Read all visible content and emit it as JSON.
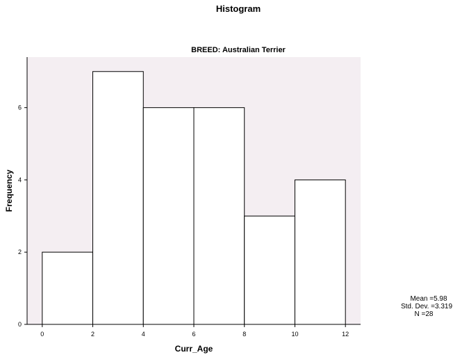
{
  "chart_data": {
    "type": "bar",
    "title": "Histogram",
    "subtitle": "BREED: Australian Terrier",
    "xlabel": "Curr_Age",
    "ylabel": "Frequency",
    "bins": [
      {
        "start": 0,
        "end": 2,
        "count": 2
      },
      {
        "start": 2,
        "end": 4,
        "count": 7
      },
      {
        "start": 4,
        "end": 6,
        "count": 6
      },
      {
        "start": 6,
        "end": 8,
        "count": 6
      },
      {
        "start": 8,
        "end": 10,
        "count": 3
      },
      {
        "start": 10,
        "end": 12,
        "count": 4
      }
    ],
    "xticks": [
      "0",
      "2",
      "4",
      "6",
      "8",
      "10",
      "12"
    ],
    "yticks": [
      "0",
      "2",
      "4",
      "6"
    ],
    "xlim": [
      -0.6,
      12.6
    ],
    "ylim": [
      0,
      7.4
    ],
    "stats": {
      "mean": "Mean =5.98",
      "std_dev": "Std. Dev. =3.319",
      "n": "N =28"
    },
    "colors": {
      "plot_background": "#f4eef2",
      "bar_fill": "#ffffff",
      "bar_stroke": "#000000"
    },
    "grid": false
  }
}
